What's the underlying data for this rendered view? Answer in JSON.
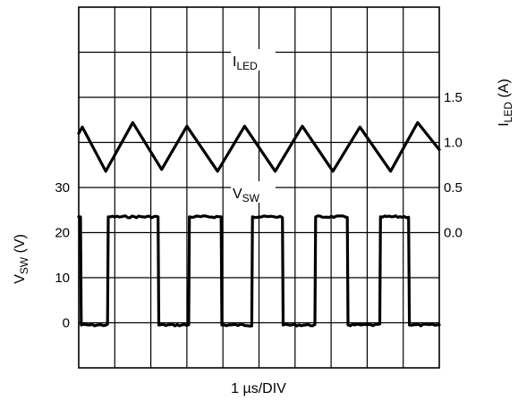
{
  "chart_data": {
    "type": "line",
    "xlabel": {
      "prefix": "1 ",
      "unit": "µs/DIV"
    },
    "grid": true,
    "x_divisions": 10,
    "y_divisions": 8,
    "right_axis": {
      "label": {
        "main": "I",
        "sub": "LED",
        "unit": " (A)"
      },
      "ticks": [
        "1.5",
        "1.0",
        "0.5",
        "0.0"
      ],
      "tick_values": [
        1.5,
        1.0,
        0.5,
        0.0
      ],
      "range": [
        -1.5,
        2.5
      ]
    },
    "left_axis": {
      "label": {
        "main": "V",
        "sub": "SW",
        "unit": " (V)"
      },
      "ticks": [
        "30",
        "20",
        "10",
        "0"
      ],
      "tick_values": [
        30,
        20,
        10,
        0
      ],
      "range": [
        -10,
        70
      ]
    },
    "series": [
      {
        "name": {
          "main": "I",
          "sub": "LED"
        },
        "axis": "right",
        "x_us": [
          0.0,
          0.1,
          0.75,
          1.5,
          2.3,
          3.0,
          3.85,
          4.6,
          5.45,
          6.2,
          7.05,
          7.8,
          8.65,
          9.4,
          10.0
        ],
        "values": [
          1.1,
          1.17,
          0.68,
          1.22,
          0.7,
          1.18,
          0.68,
          1.18,
          0.68,
          1.18,
          0.68,
          1.17,
          0.68,
          1.22,
          0.92
        ]
      },
      {
        "name": {
          "main": "V",
          "sub": "SW"
        },
        "axis": "left",
        "high_level": 23.5,
        "low_level": -0.5,
        "edges_us": [
          0.05,
          0.8,
          2.2,
          3.05,
          3.95,
          4.8,
          5.65,
          6.55,
          7.45,
          8.35,
          9.15,
          10.0
        ],
        "levels_after_edge": [
          "low",
          "high",
          "low",
          "high",
          "low",
          "high",
          "low",
          "high",
          "low",
          "high",
          "low",
          "high"
        ]
      }
    ],
    "annotations": [
      {
        "target": "ILED",
        "text": {
          "main": "I",
          "sub": "LED"
        }
      },
      {
        "target": "VSW",
        "text": {
          "main": "V",
          "sub": "SW"
        }
      }
    ]
  }
}
